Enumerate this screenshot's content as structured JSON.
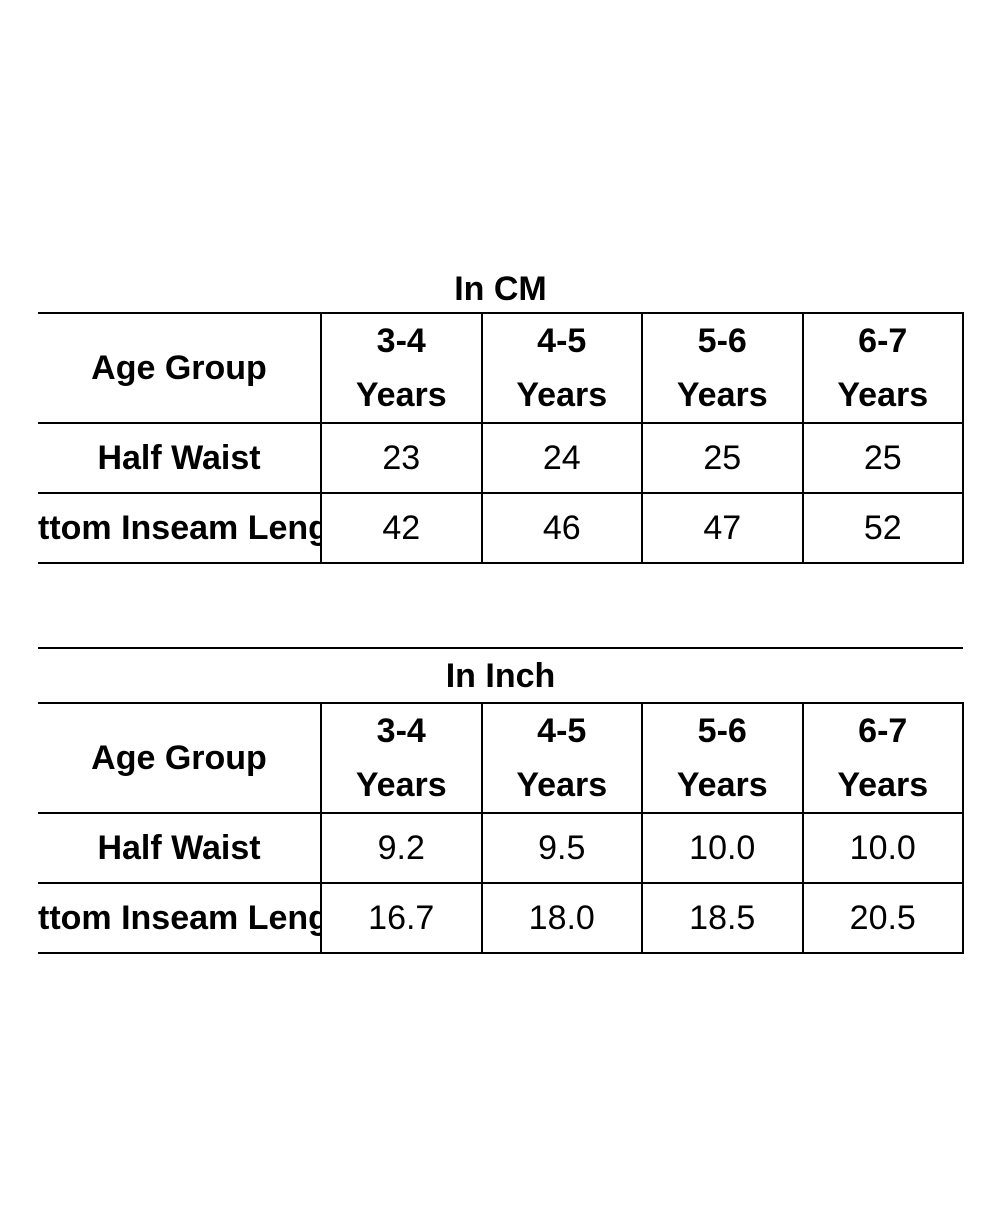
{
  "tables": [
    {
      "title": "In CM",
      "header": {
        "label": "Age Group",
        "sizes": [
          {
            "line1": "3-4",
            "line2": "Years"
          },
          {
            "line1": "4-5",
            "line2": "Years"
          },
          {
            "line1": "5-6",
            "line2": "Years"
          },
          {
            "line1": "6-7",
            "line2": "Years"
          }
        ]
      },
      "rows": [
        {
          "label": "Half Waist",
          "values": [
            "23",
            "24",
            "25",
            "25"
          ]
        },
        {
          "label": "ttom Inseam Leng",
          "values": [
            "42",
            "46",
            "47",
            "52"
          ]
        }
      ]
    },
    {
      "title": "In Inch",
      "header": {
        "label": "Age Group",
        "sizes": [
          {
            "line1": "3-4",
            "line2": "Years"
          },
          {
            "line1": "4-5",
            "line2": "Years"
          },
          {
            "line1": "5-6",
            "line2": "Years"
          },
          {
            "line1": "6-7",
            "line2": "Years"
          }
        ]
      },
      "rows": [
        {
          "label": "Half Waist",
          "values": [
            "9.2",
            "9.5",
            "10.0",
            "10.0"
          ]
        },
        {
          "label": "ttom Inseam Leng",
          "values": [
            "16.7",
            "18.0",
            "18.5",
            "20.5"
          ]
        }
      ]
    }
  ]
}
